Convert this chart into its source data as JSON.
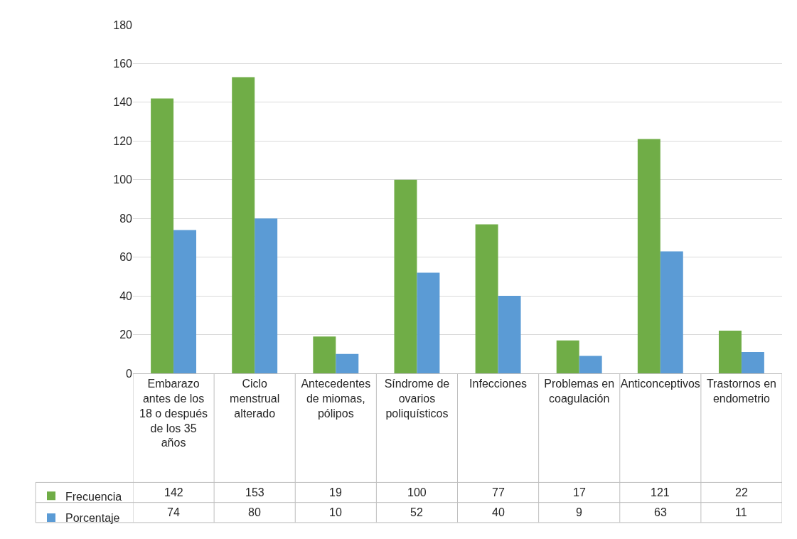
{
  "chart_data": {
    "type": "bar",
    "categories": [
      "Embarazo antes de los 18 o después de los 35 años",
      "Ciclo menstrual alterado",
      "Antecedentes de miomas, pólipos",
      "Síndrome de ovarios poliquísticos",
      "Infecciones",
      "Problemas en coagulación",
      "Anticonceptivos",
      "Trastornos en endometrio"
    ],
    "series": [
      {
        "name": "Frecuencia",
        "color": "#70ad47",
        "values": [
          142,
          153,
          19,
          100,
          77,
          17,
          121,
          22
        ]
      },
      {
        "name": "Porcentaje",
        "color": "#5b9bd5",
        "values": [
          74,
          80,
          10,
          52,
          40,
          9,
          63,
          11
        ]
      }
    ],
    "ylim": [
      0,
      180
    ],
    "yticks": [
      0,
      20,
      40,
      60,
      80,
      100,
      120,
      140,
      160,
      180
    ],
    "grid": "y",
    "legend": "bottom left",
    "data_labels": true
  }
}
